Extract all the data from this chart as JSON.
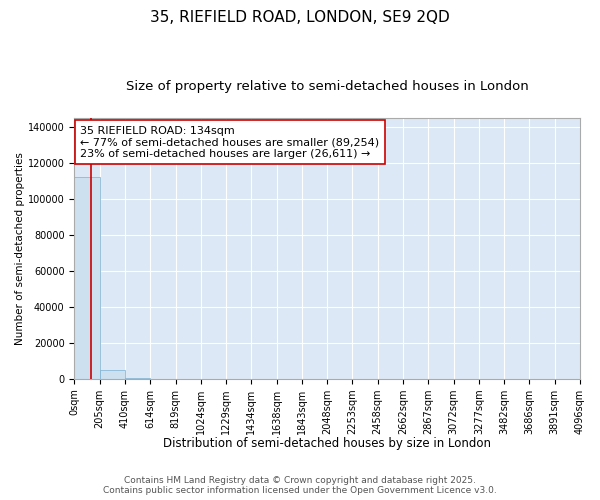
{
  "title": "35, RIEFIELD ROAD, LONDON, SE9 2QD",
  "subtitle": "Size of property relative to semi-detached houses in London",
  "xlabel": "Distribution of semi-detached houses by size in London",
  "ylabel": "Number of semi-detached properties",
  "property_size": 134,
  "annotation_text": "35 RIEFIELD ROAD: 134sqm\n← 77% of semi-detached houses are smaller (89,254)\n23% of semi-detached houses are larger (26,611) →",
  "footer_line1": "Contains HM Land Registry data © Crown copyright and database right 2025.",
  "footer_line2": "Contains public sector information licensed under the Open Government Licence v3.0.",
  "bin_edges": [
    0,
    204.8,
    409.6,
    614.4,
    819.2,
    1024.0,
    1228.8,
    1433.6,
    1638.4,
    1843.2,
    2048.0,
    2252.8,
    2457.6,
    2662.4,
    2867.2,
    3072.0,
    3276.8,
    3481.6,
    3686.4,
    3891.2,
    4096.0
  ],
  "bin_counts": [
    112000,
    5000,
    400,
    150,
    70,
    35,
    18,
    10,
    6,
    4,
    3,
    2,
    2,
    1,
    1,
    1,
    1,
    0,
    0,
    0
  ],
  "bar_color": "#cce0f0",
  "bar_edge_color": "#7ab0d0",
  "line_color": "#cc0000",
  "annotation_box_facecolor": "#ffffff",
  "annotation_border_color": "#cc0000",
  "fig_background_color": "#ffffff",
  "plot_background_color": "#dce8f5",
  "grid_color": "#ffffff",
  "ylim": [
    0,
    145000
  ],
  "xlim": [
    0,
    4096
  ],
  "ytick_values": [
    0,
    20000,
    40000,
    60000,
    80000,
    100000,
    120000,
    140000
  ],
  "xtick_labels": [
    "0sqm",
    "205sqm",
    "410sqm",
    "614sqm",
    "819sqm",
    "1024sqm",
    "1229sqm",
    "1434sqm",
    "1638sqm",
    "1843sqm",
    "2048sqm",
    "2253sqm",
    "2458sqm",
    "2662sqm",
    "2867sqm",
    "3072sqm",
    "3277sqm",
    "3482sqm",
    "3686sqm",
    "3891sqm",
    "4096sqm"
  ],
  "title_fontsize": 11,
  "subtitle_fontsize": 9.5,
  "annotation_fontsize": 8,
  "tick_fontsize": 7,
  "xlabel_fontsize": 8.5,
  "ylabel_fontsize": 7.5,
  "footer_fontsize": 6.5
}
